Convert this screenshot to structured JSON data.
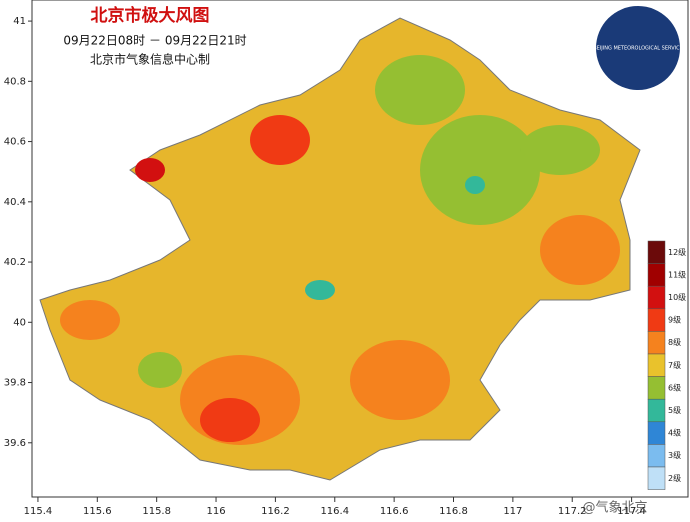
{
  "header": {
    "title": "北京市极大风图",
    "period": "09月22日08时 － 09月22日21时",
    "producer": "北京市气象信息中心制"
  },
  "chart_data": {
    "type": "map",
    "xlim": [
      115.38,
      117.59
    ],
    "ylim": [
      39.42,
      41.07
    ],
    "xticks": [
      115.4,
      115.6,
      115.8,
      116,
      116.2,
      116.4,
      116.6,
      116.8,
      117,
      117.2,
      117.4
    ],
    "yticks": [
      39.6,
      39.8,
      40,
      40.2,
      40.4,
      40.6,
      40.8,
      41
    ],
    "legend": {
      "items": [
        {
          "label": "12级",
          "color": "#6b0a0a"
        },
        {
          "label": "11级",
          "color": "#a00000"
        },
        {
          "label": "10级",
          "color": "#d21010"
        },
        {
          "label": "9级",
          "color": "#f03a14"
        },
        {
          "label": "8级",
          "color": "#f5821e"
        },
        {
          "label": "7级",
          "color": "#e9c22c"
        },
        {
          "label": "6级",
          "color": "#95bf32"
        },
        {
          "label": "5级",
          "color": "#33b89a"
        },
        {
          "label": "4级",
          "color": "#2f86d6"
        },
        {
          "label": "3级",
          "color": "#7bbcef"
        },
        {
          "label": "2级",
          "color": "#bfe0f7"
        }
      ]
    }
  },
  "logo": {
    "text": "BEIJING METEOROLOGICAL SERVICE"
  },
  "watermark": "@气象北京"
}
